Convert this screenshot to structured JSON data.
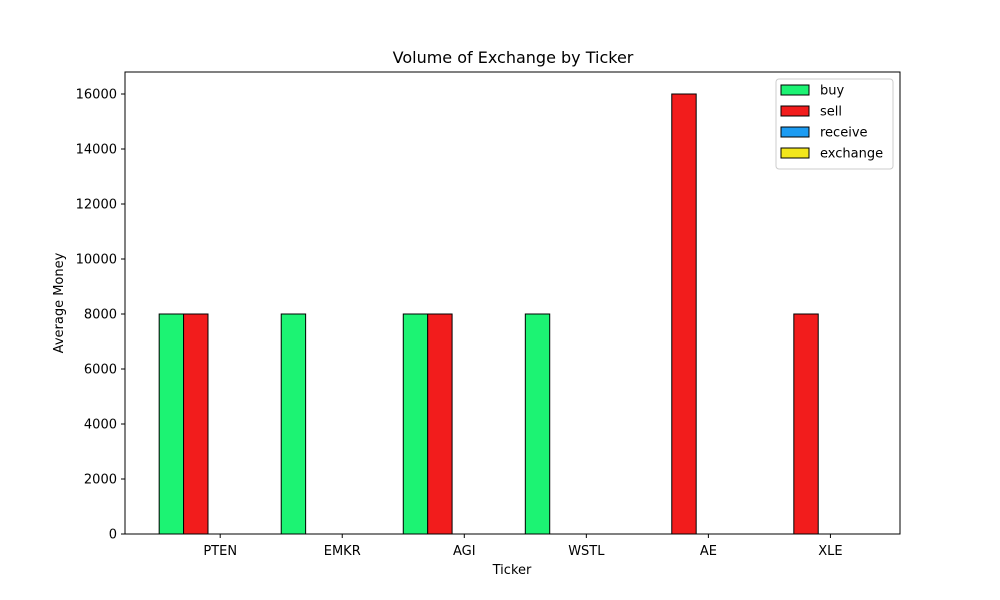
{
  "chart_data": {
    "type": "bar",
    "title": "Volume of Exchange by Ticker",
    "xlabel": "Ticker",
    "ylabel": "Average Money",
    "categories": [
      "PTEN",
      "EMKR",
      "AGI",
      "WSTL",
      "AE",
      "XLE"
    ],
    "series": [
      {
        "name": "buy",
        "color": "#1cf373",
        "values": [
          8000,
          8000,
          8000,
          8000,
          0,
          0
        ]
      },
      {
        "name": "sell",
        "color": "#f21c1c",
        "values": [
          8000,
          0,
          8000,
          0,
          16000,
          8000
        ]
      },
      {
        "name": "receive",
        "color": "#1c9cf2",
        "values": [
          0,
          0,
          0,
          0,
          0,
          0
        ]
      },
      {
        "name": "exchange",
        "color": "#f2e61c",
        "values": [
          0,
          0,
          0,
          0,
          0,
          0
        ]
      }
    ],
    "ylim": [
      0,
      16800
    ],
    "yticks": [
      0,
      2000,
      4000,
      6000,
      8000,
      10000,
      12000,
      14000,
      16000
    ],
    "grid": false,
    "legend_position": "top-right"
  }
}
